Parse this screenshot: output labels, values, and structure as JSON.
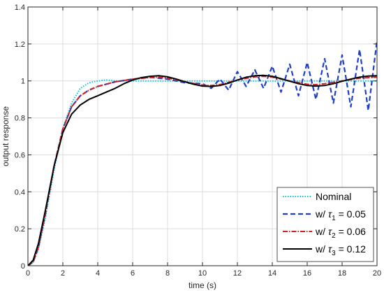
{
  "chart_data": {
    "type": "line",
    "title": "",
    "xlabel": "time (s)",
    "ylabel": "output response",
    "xlim": [
      0,
      20
    ],
    "ylim": [
      0,
      1.4
    ],
    "xticks": [
      0,
      2,
      4,
      6,
      8,
      10,
      12,
      14,
      16,
      18,
      20
    ],
    "yticks": [
      0,
      0.2,
      0.4,
      0.6,
      0.8,
      1,
      1.2,
      1.4
    ],
    "xtick_labels": [
      "0",
      "2",
      "4",
      "6",
      "8",
      "10",
      "12",
      "14",
      "16",
      "18",
      "20"
    ],
    "ytick_labels": [
      "0",
      "0.2",
      "0.4",
      "0.6",
      "0.8",
      "1",
      "1.2",
      "1.4"
    ],
    "grid": true,
    "legend_position": "bottom-right",
    "series": [
      {
        "legend_prefix": "Nominal",
        "legend_symbol": "",
        "legend_subscript": "",
        "legend_suffix": "",
        "color": "#00c8d8",
        "dash": "1.5 2",
        "width": 2,
        "x": [
          0,
          0.3,
          0.6,
          1.0,
          1.5,
          2.0,
          2.5,
          3.0,
          3.5,
          4.0,
          4.5,
          5.0,
          6.0,
          8.0,
          10.0,
          12.0,
          14.0,
          16.0,
          18.0,
          20.0
        ],
        "y": [
          0,
          0.02,
          0.09,
          0.26,
          0.52,
          0.74,
          0.88,
          0.96,
          0.99,
          1.0,
          1.005,
          1.0,
          1.0,
          1.0,
          1.0,
          1.0,
          1.0,
          1.0,
          1.0,
          1.0
        ]
      },
      {
        "legend_prefix": "w/ ",
        "legend_symbol": "τ",
        "legend_subscript": "1",
        "legend_suffix": " = 0.05",
        "color": "#1f3fc8",
        "dash": "7 4",
        "width": 2.2,
        "x": [
          0,
          0.3,
          0.6,
          1.0,
          1.5,
          2.0,
          2.5,
          3.0,
          3.5,
          4.0,
          5.0,
          6.0,
          7.0,
          8.0,
          9.0,
          10.0,
          10.5,
          11.0,
          11.5,
          12.0,
          12.5,
          13.0,
          13.5,
          14.0,
          14.5,
          15.0,
          15.5,
          16.0,
          16.5,
          17.0,
          17.5,
          18.0,
          18.5,
          19.0,
          19.5,
          20.0
        ],
        "y": [
          0,
          0.02,
          0.1,
          0.28,
          0.54,
          0.74,
          0.86,
          0.92,
          0.95,
          0.97,
          0.995,
          1.01,
          1.02,
          1.01,
          0.99,
          0.985,
          0.96,
          1.01,
          0.95,
          1.05,
          0.97,
          1.06,
          0.96,
          1.08,
          0.94,
          1.09,
          0.92,
          1.1,
          0.9,
          1.12,
          0.88,
          1.14,
          0.86,
          1.17,
          0.84,
          1.22
        ]
      },
      {
        "legend_prefix": "w/ ",
        "legend_symbol": "τ",
        "legend_subscript": "2",
        "legend_suffix": " = 0.06",
        "color": "#d42020",
        "dash": "7 2 1.5 2",
        "width": 2,
        "x": [
          0,
          0.3,
          0.6,
          1.0,
          1.5,
          2.0,
          2.5,
          3.0,
          3.5,
          4.0,
          5.0,
          6.0,
          7.0,
          7.5,
          8.0,
          9.0,
          10.0,
          10.5,
          11.0,
          12.0,
          13.0,
          13.5,
          14.0,
          15.0,
          16.0,
          16.5,
          17.0,
          18.0,
          19.0,
          20.0
        ],
        "y": [
          0,
          0.02,
          0.1,
          0.28,
          0.54,
          0.74,
          0.86,
          0.92,
          0.95,
          0.97,
          0.995,
          1.01,
          1.018,
          1.02,
          1.015,
          0.995,
          0.978,
          0.975,
          0.98,
          1.005,
          1.022,
          1.025,
          1.02,
          1.0,
          0.982,
          0.98,
          0.985,
          1.0,
          1.015,
          1.02
        ]
      },
      {
        "legend_prefix": "w/ ",
        "legend_symbol": "τ",
        "legend_subscript": "3",
        "legend_suffix": " = 0.12",
        "color": "#000000",
        "dash": "",
        "width": 2,
        "x": [
          0,
          0.3,
          0.6,
          1.0,
          1.5,
          2.0,
          2.5,
          3.0,
          3.5,
          4.0,
          4.5,
          5.0,
          5.5,
          6.0,
          6.5,
          7.0,
          7.5,
          8.0,
          8.5,
          9.0,
          9.5,
          10.0,
          10.5,
          11.0,
          11.5,
          12.0,
          12.5,
          13.0,
          13.5,
          14.0,
          14.5,
          15.0,
          15.5,
          16.0,
          16.5,
          17.0,
          17.5,
          18.0,
          18.5,
          19.0,
          19.5,
          20.0
        ],
        "y": [
          0,
          0.03,
          0.12,
          0.3,
          0.54,
          0.72,
          0.82,
          0.87,
          0.9,
          0.92,
          0.94,
          0.96,
          0.985,
          1.005,
          1.018,
          1.025,
          1.028,
          1.022,
          1.01,
          0.995,
          0.982,
          0.972,
          0.97,
          0.975,
          0.988,
          1.005,
          1.02,
          1.028,
          1.03,
          1.025,
          1.012,
          0.998,
          0.985,
          0.975,
          0.972,
          0.975,
          0.985,
          0.998,
          1.01,
          1.02,
          1.026,
          1.028
        ]
      }
    ]
  }
}
